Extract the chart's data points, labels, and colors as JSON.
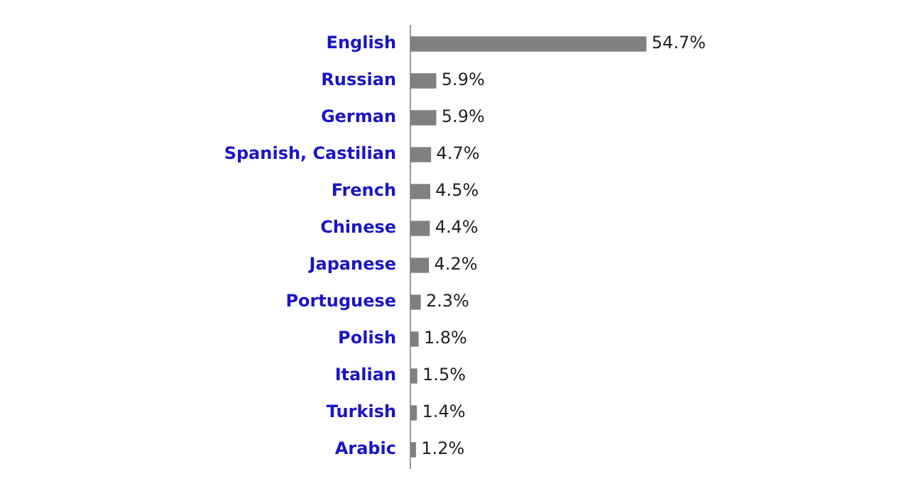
{
  "chart_data": {
    "type": "bar",
    "orientation": "horizontal",
    "categories": [
      "English",
      "Russian",
      "German",
      "Spanish, Castilian",
      "French",
      "Chinese",
      "Japanese",
      "Portuguese",
      "Polish",
      "Italian",
      "Turkish",
      "Arabic"
    ],
    "values": [
      54.7,
      5.9,
      5.9,
      4.7,
      4.5,
      4.4,
      4.2,
      2.3,
      1.8,
      1.5,
      1.4,
      1.2
    ],
    "value_labels": [
      "54.7%",
      "5.9%",
      "5.9%",
      "4.7%",
      "4.5%",
      "4.4%",
      "4.2%",
      "2.3%",
      "1.8%",
      "1.5%",
      "1.4%",
      "1.2%"
    ],
    "color": "#808080",
    "grid": false,
    "legend": false,
    "tick_labels": "y"
  }
}
